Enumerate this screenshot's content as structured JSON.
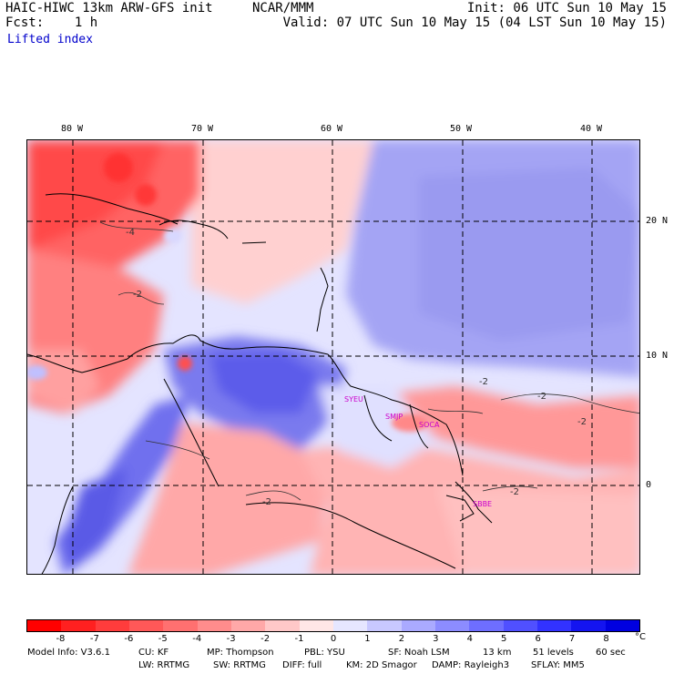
{
  "header": {
    "title": "HAIC-HIWC 13km ARW-GFS init",
    "center": "NCAR/MMM",
    "init": "Init: 06 UTC Sun 10 May 15",
    "fcst": "Fcst:    1 h",
    "valid": "Valid: 07 UTC Sun 10 May 15 (04 LST Sun 10 May 15)",
    "field": "Lifted index"
  },
  "map": {
    "lon_labels": [
      "80 W",
      "70 W",
      "60 W",
      "50 W",
      "40 W"
    ],
    "lat_labels": [
      "20 N",
      "10 N",
      "0"
    ],
    "lon_range": [
      -83.5,
      -35
    ],
    "lat_range": [
      -6.5,
      26.5
    ],
    "stations": [
      "SYEU",
      "SMJP",
      "SOCA",
      "SBBE"
    ],
    "contour_labels": [
      "-4",
      "-2",
      "-2",
      "-2",
      "-2",
      "-2",
      "-2"
    ],
    "colors": {
      "strong_negative": "#ff4a4a",
      "moderate_negative": "#ff8a8a",
      "weak_negative": "#ffc4c4",
      "near_zero": "#ffffff",
      "weak_positive": "#c8c8ff",
      "moderate_positive": "#9090ff",
      "strong_positive": "#5050f0"
    }
  },
  "colorbar": {
    "labels": [
      "-8",
      "-7",
      "-6",
      "-5",
      "-4",
      "-3",
      "-2",
      "-1",
      "0",
      "1",
      "2",
      "3",
      "4",
      "5",
      "6",
      "7",
      "8"
    ],
    "unit": "°C",
    "colors": [
      "#ff0000",
      "#ff2020",
      "#ff3c3c",
      "#ff5858",
      "#ff7070",
      "#ff8c8c",
      "#ffa8a8",
      "#ffc8c8",
      "#ffe6e6",
      "#e6e6ff",
      "#c8c8ff",
      "#aaaaff",
      "#8c8cff",
      "#6e6eff",
      "#5050ff",
      "#3232ff",
      "#1414f0",
      "#0000e0"
    ]
  },
  "footer": {
    "line1": [
      "Model Info: V3.6.1",
      "CU: KF",
      "MP: Thompson",
      "PBL: YSU",
      "SF: Noah LSM",
      "13 km",
      "51 levels",
      "60 sec"
    ],
    "line2": [
      "LW: RRTMG",
      "SW: RRTMG",
      "DIFF: full",
      "KM: 2D Smagor",
      "DAMP: Rayleigh3",
      "SFLAY: MM5"
    ]
  }
}
